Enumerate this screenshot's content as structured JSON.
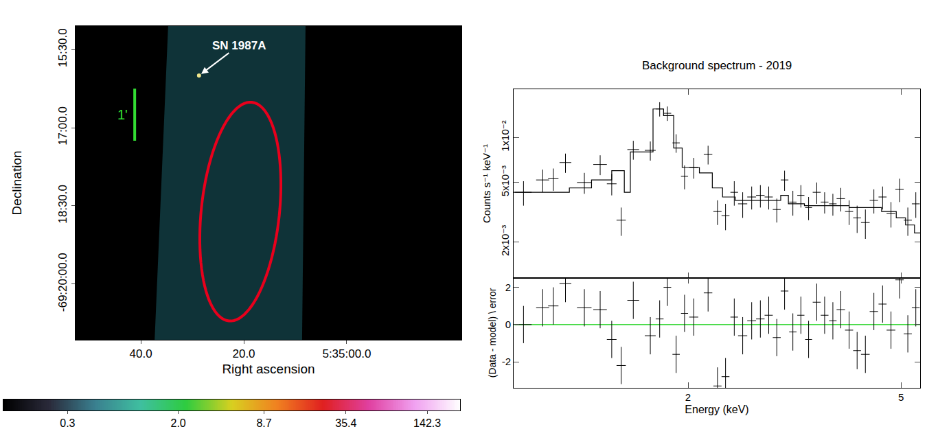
{
  "chart_data": [
    {
      "type": "image",
      "xlabel": "Right ascension",
      "ylabel": "Declination",
      "xlim": [
        52.7,
        -22.3
      ],
      "ylim": [
        -21.07,
        -15.05
      ],
      "xticks": [
        {
          "value": 40,
          "label": "40.0"
        },
        {
          "value": 20,
          "label": "20.0"
        },
        {
          "value": 0,
          "label": "5:35:00.0"
        }
      ],
      "yticks": [
        {
          "value": -15.5,
          "label": "15:30.0"
        },
        {
          "value": -17,
          "label": "17:00.0"
        },
        {
          "value": -18.5,
          "label": "18:30.0"
        },
        {
          "value": -20,
          "label": "-69:20:00.0"
        }
      ],
      "annotations": [
        {
          "text": "SN 1987A",
          "x": 28.7,
          "y": -16.0,
          "color": "#ffffff"
        }
      ],
      "region": {
        "x": 20.67,
        "y": -18.61,
        "semi_x": 7.6,
        "semi_y": 2.11,
        "angle": 6,
        "color": "#e8001c"
      },
      "scale_bar": {
        "label": "1'",
        "x": 41.2,
        "y": -16.25,
        "length": 1,
        "color": "#33dd33"
      },
      "colorbar": {
        "log": true,
        "range": [
          0.1,
          250
        ],
        "ticks": [
          0.3,
          {
            "value": 2,
            "label": "2.0"
          },
          8.7,
          35.4,
          142.3
        ],
        "colors": [
          "#000000",
          "#2a2a3a",
          "#3a7f8f",
          "#3fbfa0",
          "#2ecc40",
          "#d8d020",
          "#f08020",
          "#e02020",
          "#e040a0",
          "#f0a0f0",
          "#ffffff"
        ]
      }
    },
    {
      "type": "scatter",
      "title": "Background spectrum - 2019",
      "ylabel": "Counts s⁻¹ keV⁻¹",
      "log": true,
      "tick_labels": "y",
      "xlim": [
        0.944,
        5.43
      ],
      "ylim": [
        0.00115,
        0.021
      ],
      "yticks": [
        {
          "value": 0.002,
          "label": "2x10⁻³"
        },
        {
          "value": 0.005,
          "label": "5x10⁻³"
        },
        {
          "value": 0.01,
          "label": "1x10⁻²"
        }
      ],
      "series": [
        {
          "type": "scatter",
          "color": "#000000",
          "marker": "cross",
          "x": [
            0.985,
            1.07,
            1.12,
            1.18,
            1.28,
            1.37,
            1.44,
            1.5,
            1.58,
            1.7,
            1.77,
            1.83,
            1.9,
            1.97,
            2.05,
            2.18,
            2.27,
            2.35,
            2.44,
            2.53,
            2.63,
            2.73,
            2.83,
            2.93,
            3.03,
            3.14,
            3.25,
            3.36,
            3.48,
            3.6,
            3.73,
            3.86,
            4.0,
            4.14,
            4.29,
            4.45,
            4.62,
            4.79,
            4.97,
            5.15,
            5.33
          ],
          "x_err": [
            0.035,
            0.03,
            0.025,
            0.03,
            0.04,
            0.04,
            0.03,
            0.03,
            0.04,
            0.04,
            0.03,
            0.03,
            0.03,
            0.03,
            0.04,
            0.04,
            0.04,
            0.04,
            0.04,
            0.05,
            0.05,
            0.05,
            0.05,
            0.05,
            0.05,
            0.05,
            0.05,
            0.05,
            0.06,
            0.06,
            0.06,
            0.07,
            0.07,
            0.07,
            0.08,
            0.08,
            0.08,
            0.09,
            0.09,
            0.09,
            0.09
          ],
          "values": [
            0.0043,
            0.0052,
            0.0053,
            0.0068,
            0.005,
            0.0066,
            0.0049,
            0.0028,
            0.0083,
            0.0082,
            0.0155,
            0.0145,
            0.0092,
            0.0055,
            0.0063,
            0.0077,
            0.0032,
            0.003,
            0.0043,
            0.0036,
            0.004,
            0.0041,
            0.004,
            0.0033,
            0.0052,
            0.0037,
            0.0041,
            0.0034,
            0.0043,
            0.0037,
            0.0036,
            0.0039,
            0.0032,
            0.0029,
            0.0027,
            0.0038,
            0.004,
            0.0031,
            0.0045,
            0.0028,
            0.0036
          ],
          "y_err": [
            0.0008,
            0.0009,
            0.0009,
            0.001,
            0.0008,
            0.001,
            0.0008,
            0.0006,
            0.0012,
            0.0012,
            0.0017,
            0.0016,
            0.0013,
            0.001,
            0.001,
            0.0011,
            0.0006,
            0.0006,
            0.0008,
            0.0007,
            0.0007,
            0.0007,
            0.0007,
            0.0006,
            0.0008,
            0.0007,
            0.0007,
            0.0006,
            0.0007,
            0.0006,
            0.0006,
            0.0007,
            0.0006,
            0.0006,
            0.0006,
            0.0007,
            0.0007,
            0.0006,
            0.0008,
            0.0006,
            0.0007
          ]
        },
        {
          "type": "line",
          "color": "#000000",
          "line_style": "step",
          "bins": [
            0.944,
            1.2,
            1.32,
            1.44,
            1.52,
            1.56,
            1.72,
            1.8,
            1.88,
            1.95,
            2.1,
            2.22,
            2.32,
            2.45,
            2.98,
            3.08,
            3.3,
            4.0,
            4.6,
            4.9,
            5.1,
            5.3,
            5.43
          ],
          "values": [
            0.0043,
            0.0046,
            0.0052,
            0.006,
            0.0043,
            0.008,
            0.0155,
            0.014,
            0.0085,
            0.0063,
            0.0058,
            0.0046,
            0.004,
            0.0038,
            0.0041,
            0.0036,
            0.0035,
            0.0034,
            0.0032,
            0.0029,
            0.0026,
            0.0023
          ]
        }
      ]
    },
    {
      "type": "scatter",
      "xlabel": "Energy (keV)",
      "ylabel": "(Data - model) \\ error",
      "log": "x",
      "xlim": [
        0.944,
        5.43
      ],
      "ylim": [
        -3.4,
        2.5
      ],
      "xticks": [
        2,
        5
      ],
      "yticks": [
        -2,
        0,
        2
      ],
      "reference": {
        "value": 0,
        "color": "#00cc00"
      },
      "series": [
        {
          "type": "scatter",
          "color": "#000000",
          "marker": "cross",
          "x": [
            0.985,
            1.07,
            1.12,
            1.18,
            1.28,
            1.37,
            1.44,
            1.5,
            1.58,
            1.7,
            1.77,
            1.83,
            1.9,
            1.97,
            2.05,
            2.18,
            2.27,
            2.35,
            2.44,
            2.53,
            2.63,
            2.73,
            2.83,
            2.93,
            3.03,
            3.14,
            3.25,
            3.36,
            3.48,
            3.6,
            3.73,
            3.86,
            4.0,
            4.14,
            4.29,
            4.45,
            4.62,
            4.79,
            4.97,
            5.15,
            5.33
          ],
          "x_err": [
            0.035,
            0.03,
            0.025,
            0.03,
            0.04,
            0.04,
            0.03,
            0.03,
            0.04,
            0.04,
            0.03,
            0.03,
            0.03,
            0.03,
            0.04,
            0.04,
            0.04,
            0.04,
            0.04,
            0.05,
            0.05,
            0.05,
            0.05,
            0.05,
            0.05,
            0.05,
            0.05,
            0.05,
            0.06,
            0.06,
            0.06,
            0.07,
            0.07,
            0.07,
            0.08,
            0.08,
            0.08,
            0.09,
            0.09,
            0.09,
            0.09
          ],
          "values": [
            0.0,
            0.9,
            1.0,
            2.2,
            0.9,
            0.8,
            -0.8,
            -2.2,
            1.3,
            -0.6,
            0.3,
            2.0,
            -1.6,
            0.6,
            0.4,
            1.7,
            -3.3,
            -2.8,
            0.4,
            -0.6,
            0.2,
            0.3,
            0.5,
            -0.7,
            1.8,
            -0.4,
            0.5,
            -0.8,
            1.2,
            0.5,
            0.2,
            0.8,
            -0.3,
            -1.4,
            -1.6,
            0.7,
            1.1,
            -0.3,
            2.4,
            -0.5,
            0.9
          ],
          "y_err": [
            1,
            1,
            1,
            1,
            1,
            1,
            1,
            1,
            1,
            1,
            1,
            1,
            1,
            1,
            1,
            1,
            1,
            1,
            1,
            1,
            1,
            1,
            1,
            1,
            1,
            1,
            1,
            1,
            1,
            1,
            1,
            1,
            1,
            1,
            1,
            1,
            1,
            1,
            1,
            1,
            1
          ]
        }
      ]
    }
  ]
}
